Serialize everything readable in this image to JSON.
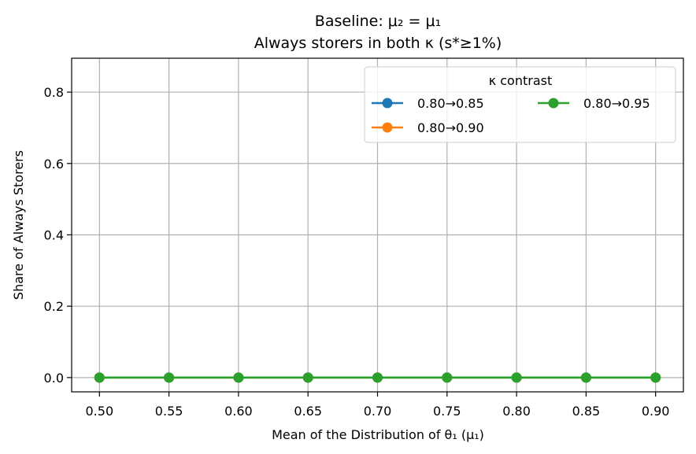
{
  "chart_data": {
    "type": "line",
    "title_line1": "Baseline: μ₂ = μ₁",
    "title_line2": "Always storers in both κ (s*≥1%)",
    "xlabel": "Mean of the Distribution of θ₁ (μ₁)",
    "ylabel": "Share of Always Storers",
    "x": [
      0.5,
      0.55,
      0.6,
      0.65,
      0.7,
      0.75,
      0.8,
      0.85,
      0.9
    ],
    "x_tick_labels": [
      "0.50",
      "0.55",
      "0.60",
      "0.65",
      "0.70",
      "0.75",
      "0.80",
      "0.85",
      "0.90"
    ],
    "y_tick_values": [
      0.0,
      0.2,
      0.4,
      0.6,
      0.8
    ],
    "y_tick_labels": [
      "0.0",
      "0.2",
      "0.4",
      "0.6",
      "0.8"
    ],
    "xlim": [
      0.48,
      0.92
    ],
    "ylim": [
      -0.04,
      0.895
    ],
    "grid": true,
    "legend": {
      "title": "κ contrast",
      "placement": "top-right",
      "columns": 2
    },
    "series": [
      {
        "name": "0.80→0.85",
        "color": "#1f77b4",
        "values": [
          0,
          0,
          0,
          0,
          0,
          0,
          0,
          0,
          0
        ]
      },
      {
        "name": "0.80→0.90",
        "color": "#ff7f0e",
        "values": [
          0,
          0,
          0,
          0,
          0,
          0,
          0,
          0,
          0
        ]
      },
      {
        "name": "0.80→0.95",
        "color": "#2ca02c",
        "values": [
          0,
          0,
          0,
          0,
          0,
          0,
          0,
          0,
          0
        ]
      }
    ]
  }
}
